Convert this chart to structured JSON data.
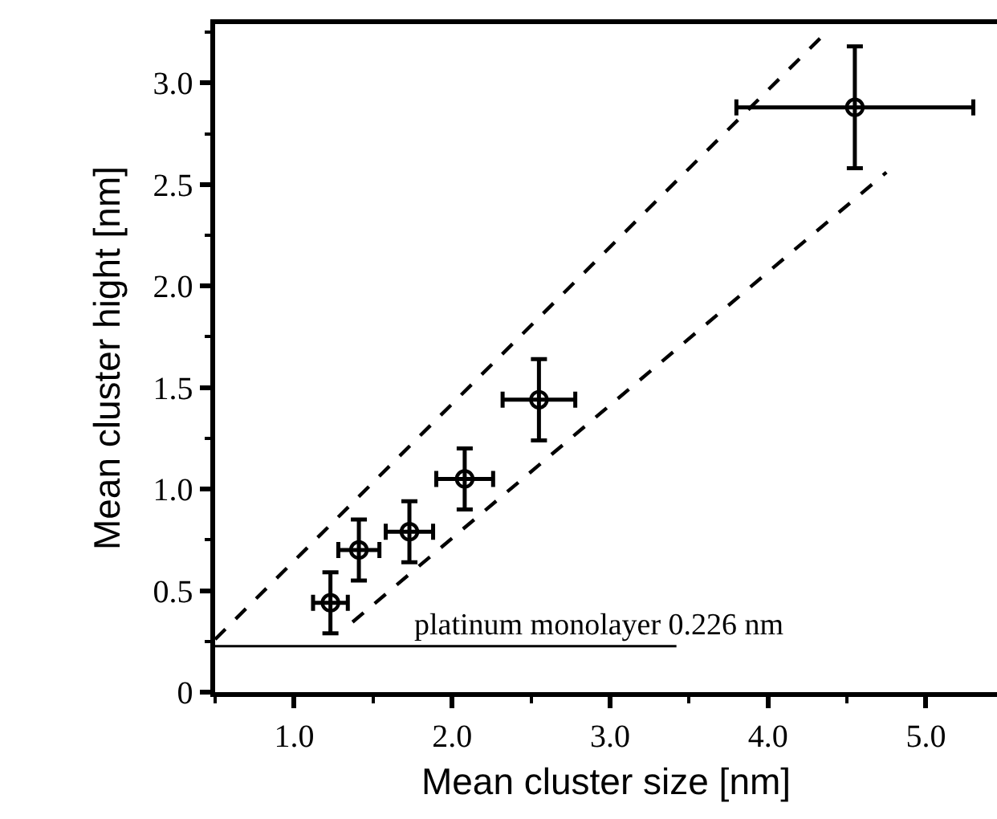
{
  "chart_data": {
    "type": "scatter",
    "xlabel": "Mean cluster size [nm]",
    "ylabel": "Mean cluster hight [nm]",
    "xlim": [
      0.5,
      5.45
    ],
    "ylim": [
      0,
      3.29
    ],
    "xticks": [
      {
        "value": 1,
        "label": "1.0"
      },
      {
        "value": 2,
        "label": "2.0"
      },
      {
        "value": 3,
        "label": "3.0"
      },
      {
        "value": 4,
        "label": "4.0"
      },
      {
        "value": 5,
        "label": "5.0"
      }
    ],
    "yticks": [
      0,
      {
        "value": 0.5,
        "label": "0.5"
      },
      {
        "value": 1,
        "label": "1.0"
      },
      {
        "value": 1.5,
        "label": "1.5"
      },
      {
        "value": 2,
        "label": "2.0"
      },
      {
        "value": 2.5,
        "label": "2.5"
      },
      {
        "value": 3,
        "label": "3.0"
      }
    ],
    "grid": false,
    "series": [
      {
        "color": "#000000",
        "marker": "circle",
        "x": [
          1.23,
          1.41,
          1.73,
          2.08,
          2.55,
          4.55
        ],
        "values": [
          0.44,
          0.7,
          0.79,
          1.05,
          1.44,
          2.88
        ],
        "errors": [
          0.15,
          0.15,
          0.15,
          0.15,
          0.2,
          0.3
        ],
        "xerrors": [
          0.11,
          0.13,
          0.15,
          0.18,
          0.23,
          0.75
        ]
      },
      {
        "type": "line",
        "color": "#000000",
        "line_style": "dashed",
        "marker": "none",
        "x": [
          0.5,
          4.33
        ],
        "values": [
          0.26,
          3.22
        ]
      },
      {
        "type": "line",
        "color": "#000000",
        "line_style": "dashed",
        "marker": "none",
        "x": [
          1.37,
          4.75
        ],
        "values": [
          0.345,
          2.56
        ]
      }
    ],
    "ref_lines": [
      {
        "axis": "y",
        "value": 0.226,
        "label": "platinum monolayer 0.226 nm",
        "color": "#000000",
        "line_style": "solid"
      }
    ]
  }
}
